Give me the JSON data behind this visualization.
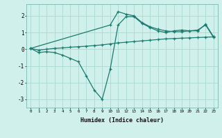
{
  "xlabel": "Humidex (Indice chaleur)",
  "background_color": "#cff0eb",
  "line_color": "#1a7a6e",
  "grid_color": "#aad8d3",
  "xlim": [
    -0.5,
    23.5
  ],
  "ylim": [
    -3.5,
    2.7
  ],
  "yticks": [
    -3,
    -2,
    -1,
    0,
    1,
    2
  ],
  "xticks": [
    0,
    1,
    2,
    3,
    4,
    5,
    6,
    7,
    8,
    9,
    10,
    11,
    12,
    13,
    14,
    15,
    16,
    17,
    18,
    19,
    20,
    21,
    22,
    23
  ],
  "line1_x": [
    0,
    1,
    2,
    3,
    4,
    5,
    6,
    7,
    8,
    9,
    10,
    11,
    12,
    13,
    14,
    15,
    16,
    17,
    18,
    19,
    20,
    21,
    22,
    23
  ],
  "line1_y": [
    0.05,
    -0.2,
    -0.15,
    -0.2,
    -0.35,
    -0.55,
    -0.75,
    -1.6,
    -2.45,
    -3.0,
    -1.2,
    1.45,
    1.95,
    1.95,
    1.55,
    1.3,
    1.1,
    1.0,
    1.1,
    1.15,
    1.1,
    1.15,
    1.45,
    0.7
  ],
  "line2_x": [
    0,
    1,
    2,
    3,
    4,
    5,
    6,
    7,
    8,
    9,
    10,
    11,
    12,
    13,
    14,
    15,
    16,
    17,
    18,
    19,
    20,
    21,
    22,
    23
  ],
  "line2_y": [
    0.05,
    -0.05,
    0.0,
    0.05,
    0.08,
    0.12,
    0.15,
    0.18,
    0.22,
    0.26,
    0.32,
    0.38,
    0.42,
    0.46,
    0.5,
    0.54,
    0.58,
    0.62,
    0.64,
    0.66,
    0.68,
    0.7,
    0.72,
    0.74
  ],
  "line3_x": [
    0,
    10,
    11,
    12,
    13,
    14,
    15,
    16,
    17,
    18,
    19,
    20,
    21,
    22,
    23
  ],
  "line3_y": [
    0.05,
    1.45,
    2.25,
    2.1,
    2.0,
    1.6,
    1.35,
    1.2,
    1.1,
    1.05,
    1.05,
    1.1,
    1.1,
    1.5,
    0.74
  ]
}
